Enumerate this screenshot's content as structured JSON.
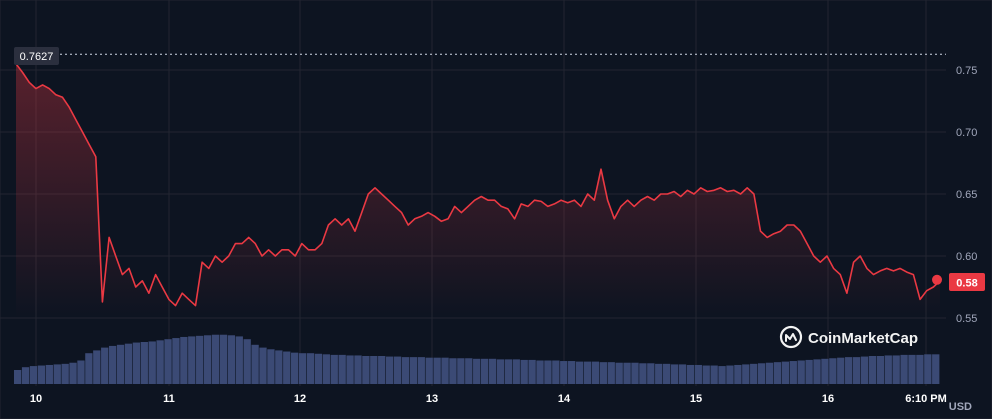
{
  "chart_data": {
    "type": "line",
    "x_ticks": [
      "10",
      "11",
      "12",
      "13",
      "14",
      "15",
      "16",
      "6:10 PM"
    ],
    "y_ticks": [
      "0.75",
      "0.70",
      "0.65",
      "0.60",
      "0.55"
    ],
    "ylim": [
      0.52,
      0.78
    ],
    "unit": "USD",
    "high_marker": "0.7627",
    "high_value": 0.7627,
    "current_price": "0.58",
    "current_value": 0.58,
    "line_color": "#ea3943",
    "volume_color": "#3b4a75",
    "grid": true,
    "series": [
      {
        "values": [
          0.755,
          0.748,
          0.74,
          0.735,
          0.738,
          0.735,
          0.73,
          0.728,
          0.72,
          0.71,
          0.7,
          0.69,
          0.68,
          0.563,
          0.615,
          0.6,
          0.585,
          0.59,
          0.575,
          0.58,
          0.57,
          0.585,
          0.575,
          0.565,
          0.56,
          0.57,
          0.565,
          0.56,
          0.595,
          0.59,
          0.6,
          0.595,
          0.6,
          0.61,
          0.61,
          0.615,
          0.61,
          0.6,
          0.605,
          0.6,
          0.605,
          0.605,
          0.6,
          0.61,
          0.605,
          0.605,
          0.61,
          0.625,
          0.63,
          0.625,
          0.63,
          0.62,
          0.635,
          0.65,
          0.655,
          0.65,
          0.645,
          0.64,
          0.635,
          0.625,
          0.63,
          0.632,
          0.635,
          0.632,
          0.628,
          0.63,
          0.64,
          0.635,
          0.64,
          0.645,
          0.648,
          0.645,
          0.645,
          0.64,
          0.638,
          0.63,
          0.642,
          0.64,
          0.645,
          0.644,
          0.64,
          0.642,
          0.645,
          0.643,
          0.645,
          0.64,
          0.65,
          0.645,
          0.67,
          0.645,
          0.63,
          0.64,
          0.645,
          0.64,
          0.645,
          0.648,
          0.645,
          0.65,
          0.65,
          0.652,
          0.648,
          0.653,
          0.65,
          0.655,
          0.652,
          0.653,
          0.655,
          0.652,
          0.653,
          0.65,
          0.655,
          0.65,
          0.62,
          0.615,
          0.618,
          0.62,
          0.625,
          0.625,
          0.62,
          0.61,
          0.6,
          0.595,
          0.6,
          0.59,
          0.585,
          0.57,
          0.595,
          0.6,
          0.59,
          0.585,
          0.588,
          0.59,
          0.588,
          0.59,
          0.587,
          0.585,
          0.565,
          0.572,
          0.575,
          0.58
        ]
      }
    ],
    "volume": [
      0.25,
      0.3,
      0.32,
      0.33,
      0.34,
      0.35,
      0.36,
      0.38,
      0.42,
      0.55,
      0.6,
      0.65,
      0.68,
      0.7,
      0.72,
      0.74,
      0.75,
      0.76,
      0.78,
      0.8,
      0.82,
      0.84,
      0.85,
      0.86,
      0.87,
      0.88,
      0.88,
      0.87,
      0.85,
      0.8,
      0.7,
      0.65,
      0.62,
      0.6,
      0.58,
      0.56,
      0.55,
      0.55,
      0.54,
      0.53,
      0.52,
      0.52,
      0.51,
      0.51,
      0.5,
      0.5,
      0.5,
      0.49,
      0.49,
      0.48,
      0.48,
      0.48,
      0.47,
      0.47,
      0.47,
      0.46,
      0.46,
      0.46,
      0.45,
      0.45,
      0.45,
      0.44,
      0.44,
      0.44,
      0.43,
      0.43,
      0.42,
      0.42,
      0.42,
      0.41,
      0.41,
      0.4,
      0.4,
      0.4,
      0.39,
      0.39,
      0.38,
      0.38,
      0.38,
      0.37,
      0.37,
      0.36,
      0.36,
      0.35,
      0.35,
      0.34,
      0.34,
      0.33,
      0.33,
      0.32,
      0.33,
      0.34,
      0.35,
      0.36,
      0.37,
      0.38,
      0.39,
      0.4,
      0.41,
      0.42,
      0.43,
      0.44,
      0.45,
      0.46,
      0.47,
      0.48,
      0.48,
      0.49,
      0.5,
      0.5,
      0.51,
      0.51,
      0.52,
      0.52,
      0.52,
      0.53,
      0.53
    ]
  },
  "logo": {
    "text": "CoinMarketCap"
  }
}
